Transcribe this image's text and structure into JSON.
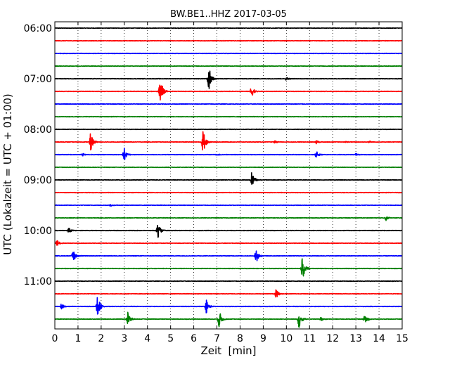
{
  "chart_data": {
    "type": "line",
    "subtype": "seismic-dayplot",
    "title": "BW.BE1..HHZ 2017-03-05",
    "xlabel": "Zeit  [min]",
    "ylabel": "UTC (Lokalzeit = UTC + 01:00)",
    "xlim": [
      0,
      15
    ],
    "x_ticks": [
      0,
      1,
      2,
      3,
      4,
      5,
      6,
      7,
      8,
      9,
      10,
      11,
      12,
      13,
      14,
      15
    ],
    "y_tick_labels": [
      "06:00",
      "07:00",
      "08:00",
      "09:00",
      "10:00",
      "11:00"
    ],
    "grid": "vertical dotted",
    "legend": "none",
    "color_cycle": [
      "#000000",
      "#ff0000",
      "#0000ff",
      "#008000"
    ],
    "trace_interval_min": 15,
    "series": [
      {
        "start": "06:00",
        "events": []
      },
      {
        "start": "06:15",
        "events": []
      },
      {
        "start": "06:30",
        "events": []
      },
      {
        "start": "06:45",
        "events": []
      },
      {
        "start": "07:00",
        "events": [
          {
            "t": 6.65,
            "amp": 1.0
          },
          {
            "t": 10.0,
            "amp": 0.15
          }
        ]
      },
      {
        "start": "07:15",
        "events": [
          {
            "t": 4.55,
            "amp": 1.25
          },
          {
            "t": 8.5,
            "amp": 0.5
          }
        ]
      },
      {
        "start": "07:30",
        "events": []
      },
      {
        "start": "07:45",
        "events": []
      },
      {
        "start": "08:00",
        "events": []
      },
      {
        "start": "08:15",
        "events": [
          {
            "t": 1.55,
            "amp": 0.8
          },
          {
            "t": 6.4,
            "amp": 1.05
          },
          {
            "t": 9.5,
            "amp": 0.12
          },
          {
            "t": 11.3,
            "amp": 0.15
          },
          {
            "t": 12.6,
            "amp": 0.1
          },
          {
            "t": 13.6,
            "amp": 0.1
          }
        ]
      },
      {
        "start": "08:30",
        "events": [
          {
            "t": 3.0,
            "amp": 0.5
          },
          {
            "t": 11.3,
            "amp": 0.3
          },
          {
            "t": 1.2,
            "amp": 0.12
          },
          {
            "t": 7.0,
            "amp": 0.1
          },
          {
            "t": 13.0,
            "amp": 0.1
          }
        ]
      },
      {
        "start": "08:45",
        "events": []
      },
      {
        "start": "09:00",
        "events": [
          {
            "t": 8.5,
            "amp": 0.7
          }
        ]
      },
      {
        "start": "09:15",
        "events": []
      },
      {
        "start": "09:30",
        "events": [
          {
            "t": 2.4,
            "amp": 0.1
          }
        ]
      },
      {
        "start": "09:45",
        "events": [
          {
            "t": 14.3,
            "amp": 0.2
          }
        ]
      },
      {
        "start": "10:00",
        "events": [
          {
            "t": 0.6,
            "amp": 0.25
          },
          {
            "t": 4.45,
            "amp": 0.6
          }
        ]
      },
      {
        "start": "10:15",
        "events": [
          {
            "t": 0.1,
            "amp": 0.25
          }
        ]
      },
      {
        "start": "10:30",
        "events": [
          {
            "t": 0.8,
            "amp": 0.55
          },
          {
            "t": 8.7,
            "amp": 0.6
          }
        ]
      },
      {
        "start": "10:45",
        "events": [
          {
            "t": 10.7,
            "amp": 0.9
          }
        ]
      },
      {
        "start": "11:00",
        "events": []
      },
      {
        "start": "11:15",
        "events": [
          {
            "t": 9.55,
            "amp": 0.4
          }
        ]
      },
      {
        "start": "11:30",
        "events": [
          {
            "t": 0.3,
            "amp": 0.3
          },
          {
            "t": 1.85,
            "amp": 0.9
          },
          {
            "t": 6.55,
            "amp": 0.55
          }
        ]
      },
      {
        "start": "11:45",
        "events": [
          {
            "t": 3.15,
            "amp": 0.6
          },
          {
            "t": 7.1,
            "amp": 0.7
          },
          {
            "t": 10.55,
            "amp": 0.75
          },
          {
            "t": 13.4,
            "amp": 0.4
          },
          {
            "t": 11.5,
            "amp": 0.15
          }
        ]
      }
    ]
  }
}
